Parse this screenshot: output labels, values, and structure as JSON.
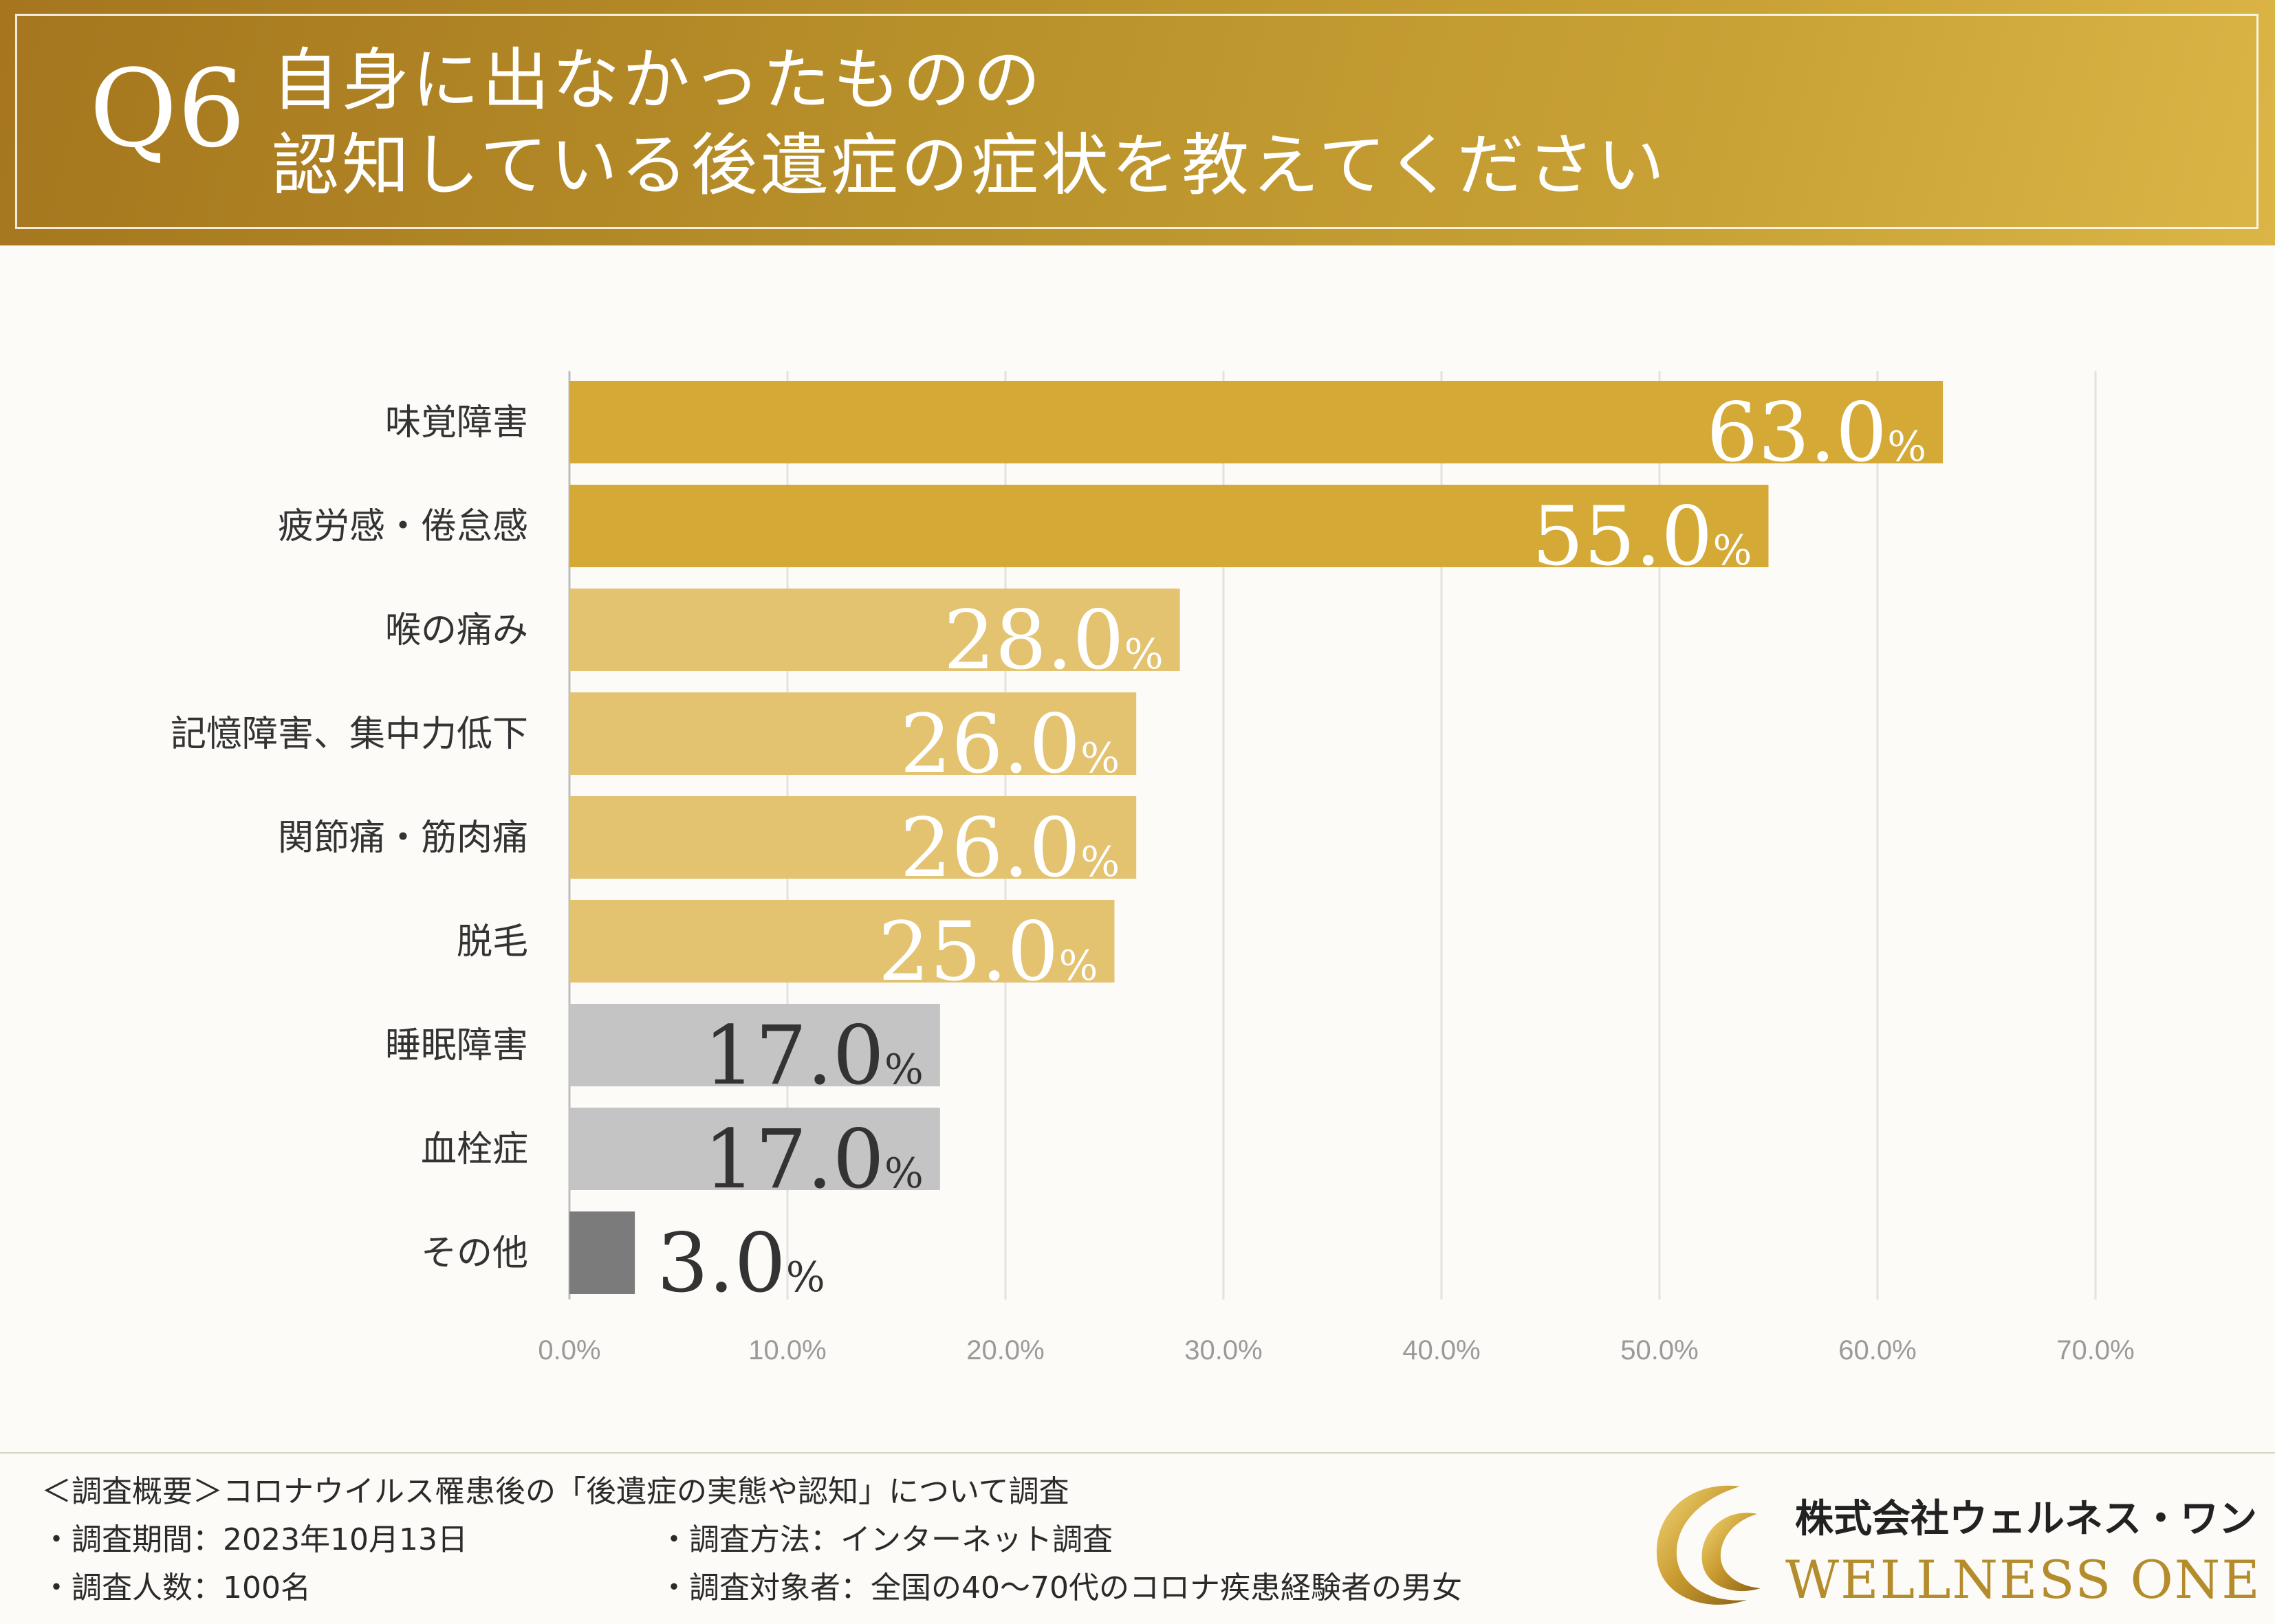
{
  "header": {
    "q_label": "Q6",
    "title_line1": "自身に出なかったものの",
    "title_line2": "認知している後遺症の症状を教えてください"
  },
  "chart_data": {
    "type": "bar",
    "orientation": "horizontal",
    "categories": [
      "味覚障害",
      "疲労感・倦怠感",
      "喉の痛み",
      "記憶障害、集中力低下",
      "関節痛・筋肉痛",
      "脱毛",
      "睡眠障害",
      "血栓症",
      "その他"
    ],
    "values": [
      63.0,
      55.0,
      28.0,
      26.0,
      26.0,
      25.0,
      17.0,
      17.0,
      3.0
    ],
    "value_labels": [
      "63.0",
      "55.0",
      "28.0",
      "26.0",
      "26.0",
      "25.0",
      "17.0",
      "17.0",
      "3.0"
    ],
    "value_suffix": "%",
    "bar_colors": [
      "#d4a935",
      "#d4a935",
      "#e3c270",
      "#e3c270",
      "#e3c270",
      "#e3c270",
      "#c4c4c4",
      "#c4c4c4",
      "#7b7b7b"
    ],
    "label_colors": [
      "#ffffff",
      "#ffffff",
      "#ffffff",
      "#ffffff",
      "#ffffff",
      "#ffffff",
      "#333333",
      "#333333",
      "#333333"
    ],
    "xlim": [
      0,
      70
    ],
    "xticks": [
      0,
      10,
      20,
      30,
      40,
      50,
      60,
      70
    ],
    "xtick_labels": [
      "0.0%",
      "10.0%",
      "20.0%",
      "30.0%",
      "40.0%",
      "50.0%",
      "60.0%",
      "70.0%"
    ],
    "grid": true
  },
  "footer": {
    "survey_overview": "＜調査概要＞コロナウイルス罹患後の「後遺症の実態や認知」について調査",
    "period": "・調査期間：2023年10月13日",
    "method": "・調査方法：インターネット調査",
    "sample_size": "・調査人数：100名",
    "target": "・調査対象者：全国の40〜70代のコロナ疾患経験者の男女"
  },
  "logo": {
    "company_ja": "株式会社ウェルネス・ワン",
    "company_en": "WELLNESS ONE",
    "icon": "wellness-one-logo-icon"
  }
}
